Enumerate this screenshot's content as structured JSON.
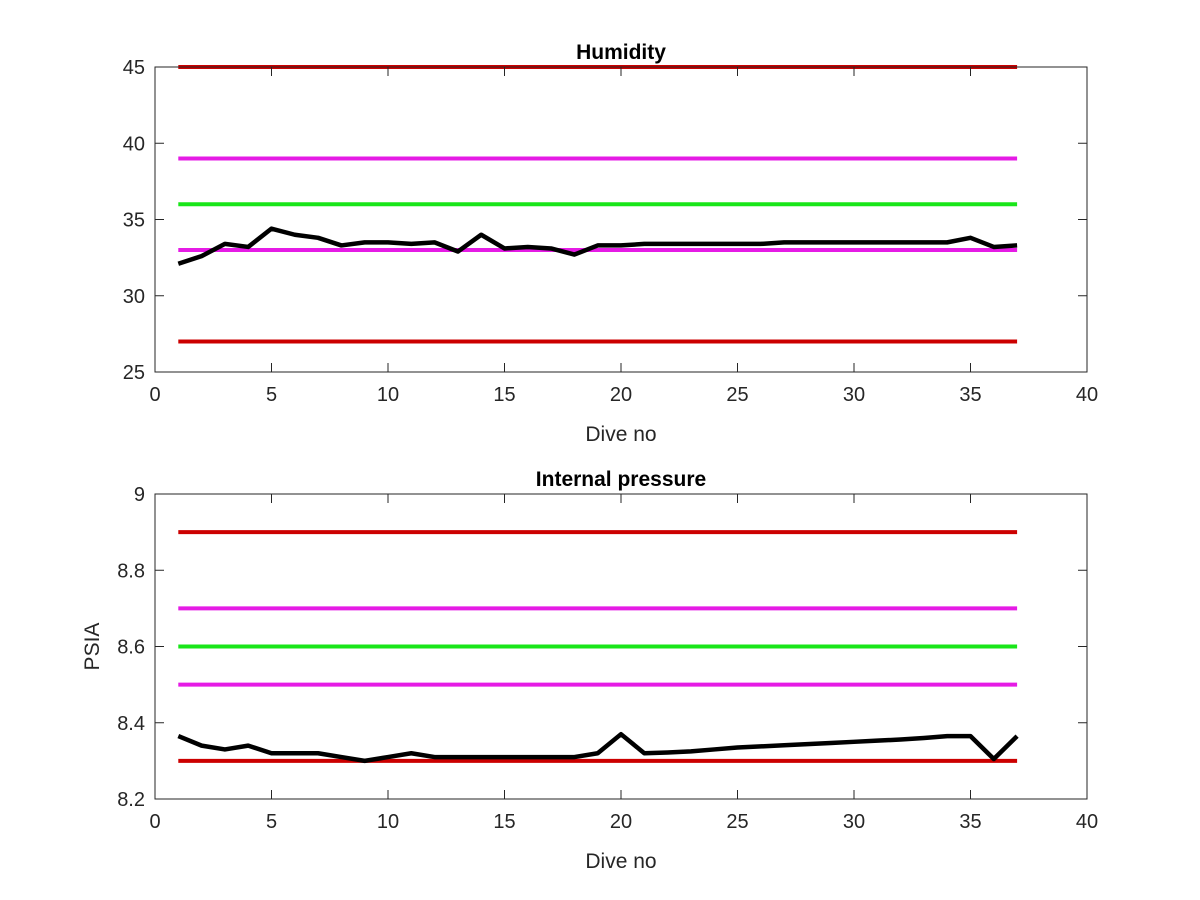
{
  "chart_data": [
    {
      "type": "line",
      "title": "Humidity",
      "xlabel": "Dive no",
      "ylabel": "",
      "xlim": [
        0,
        40
      ],
      "ylim": [
        25,
        45
      ],
      "xticks": [
        0,
        5,
        10,
        15,
        20,
        25,
        30,
        35,
        40
      ],
      "yticks": [
        25,
        30,
        35,
        40,
        45
      ],
      "xtick_labels": [
        "0",
        "5",
        "10",
        "15",
        "20",
        "25",
        "30",
        "35",
        "40"
      ],
      "ytick_labels": [
        "25",
        "30",
        "35",
        "40",
        "45"
      ],
      "grid": false,
      "reference_lines": [
        {
          "y": 45,
          "color": "#cc0000",
          "x_range": [
            1,
            37
          ]
        },
        {
          "y": 39,
          "color": "#e51be5",
          "x_range": [
            1,
            37
          ]
        },
        {
          "y": 36,
          "color": "#19e619",
          "x_range": [
            1,
            37
          ]
        },
        {
          "y": 33,
          "color": "#e51be5",
          "x_range": [
            1,
            37
          ]
        },
        {
          "y": 27,
          "color": "#cc0000",
          "x_range": [
            1,
            37
          ]
        }
      ],
      "series": [
        {
          "color": "#000000",
          "x": [
            1,
            2,
            3,
            4,
            5,
            6,
            7,
            8,
            9,
            10,
            11,
            12,
            13,
            14,
            15,
            16,
            17,
            18,
            19,
            20,
            21,
            22,
            23,
            24,
            25,
            26,
            27,
            28,
            29,
            30,
            31,
            32,
            33,
            34,
            35,
            36,
            37
          ],
          "values": [
            32.1,
            32.6,
            33.4,
            33.2,
            34.4,
            34.0,
            33.8,
            33.3,
            33.5,
            33.5,
            33.4,
            33.5,
            32.9,
            34.0,
            33.1,
            33.2,
            33.1,
            32.7,
            33.3,
            33.3,
            33.4,
            33.4,
            33.4,
            33.4,
            33.4,
            33.4,
            33.5,
            33.5,
            33.5,
            33.5,
            33.5,
            33.5,
            33.5,
            33.5,
            33.8,
            33.2,
            33.3
          ]
        }
      ]
    },
    {
      "type": "line",
      "title": "Internal pressure",
      "xlabel": "Dive no",
      "ylabel": "PSIA",
      "xlim": [
        0,
        40
      ],
      "ylim": [
        8.2,
        9
      ],
      "xticks": [
        0,
        5,
        10,
        15,
        20,
        25,
        30,
        35,
        40
      ],
      "yticks": [
        8.2,
        8.4,
        8.6,
        8.8,
        9
      ],
      "xtick_labels": [
        "0",
        "5",
        "10",
        "15",
        "20",
        "25",
        "30",
        "35",
        "40"
      ],
      "ytick_labels": [
        "8.2",
        "8.4",
        "8.6",
        "8.8",
        "9"
      ],
      "grid": false,
      "reference_lines": [
        {
          "y": 8.9,
          "color": "#cc0000",
          "x_range": [
            1,
            37
          ]
        },
        {
          "y": 8.7,
          "color": "#e51be5",
          "x_range": [
            1,
            37
          ]
        },
        {
          "y": 8.6,
          "color": "#19e619",
          "x_range": [
            1,
            37
          ]
        },
        {
          "y": 8.5,
          "color": "#e51be5",
          "x_range": [
            1,
            37
          ]
        },
        {
          "y": 8.3,
          "color": "#cc0000",
          "x_range": [
            1,
            37
          ]
        }
      ],
      "series": [
        {
          "color": "#000000",
          "x": [
            1,
            2,
            3,
            4,
            5,
            6,
            7,
            8,
            9,
            10,
            11,
            12,
            13,
            14,
            15,
            16,
            17,
            18,
            19,
            20,
            21,
            22,
            23,
            24,
            25,
            26,
            27,
            28,
            29,
            30,
            31,
            32,
            33,
            34,
            35,
            36,
            37
          ],
          "values": [
            8.365,
            8.34,
            8.33,
            8.34,
            8.32,
            8.32,
            8.32,
            8.31,
            8.3,
            8.31,
            8.32,
            8.31,
            8.31,
            8.31,
            8.31,
            8.31,
            8.31,
            8.31,
            8.32,
            8.37,
            8.32,
            8.322,
            8.325,
            8.33,
            8.335,
            8.338,
            8.341,
            8.344,
            8.347,
            8.35,
            8.353,
            8.356,
            8.36,
            8.365,
            8.365,
            8.305,
            8.365
          ]
        }
      ]
    }
  ]
}
